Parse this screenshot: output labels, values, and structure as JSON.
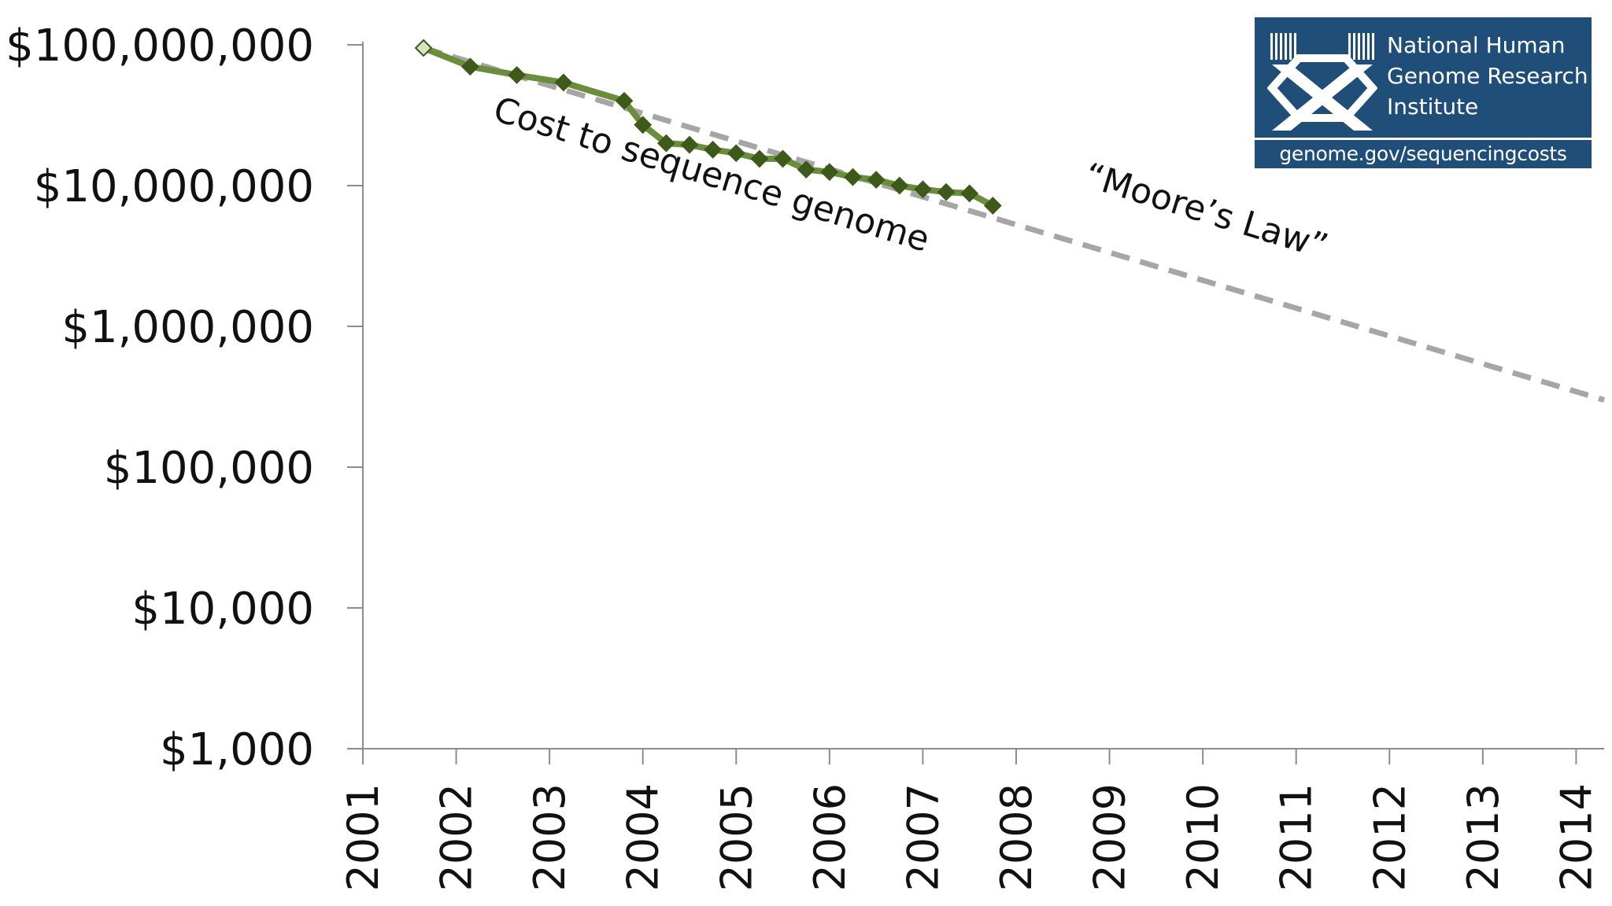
{
  "chart_data": {
    "type": "line",
    "y_scale": "log",
    "ylim": [
      1000,
      100000000
    ],
    "y_ticks": [
      1000,
      10000,
      100000,
      1000000,
      10000000,
      100000000
    ],
    "y_tick_labels": [
      "$1,000",
      "$10,000",
      "$100,000",
      "$1,000,000",
      "$10,000,000",
      "$100,000,000"
    ],
    "xlim": [
      2001,
      2014.3
    ],
    "x_ticks": [
      2001,
      2002,
      2003,
      2004,
      2005,
      2006,
      2007,
      2008,
      2009,
      2010,
      2011,
      2012,
      2013,
      2014
    ],
    "x_tick_labels": [
      "2001",
      "2002",
      "2003",
      "2004",
      "2005",
      "2006",
      "2007",
      "2008",
      "2009",
      "2010",
      "2011",
      "2012",
      "2013",
      "2014"
    ],
    "grid": false,
    "series": [
      {
        "name": "Cost to sequence genome",
        "color": "#6b8e3a",
        "marker_color": "#3d5a1a",
        "style": "solid",
        "x": [
          2001.65,
          2002.15,
          2002.65,
          2003.15,
          2003.8,
          2004.0,
          2004.25,
          2004.5,
          2004.75,
          2005.0,
          2005.25,
          2005.5,
          2005.75,
          2006.0,
          2006.25,
          2006.5,
          2006.75,
          2007.0,
          2007.25,
          2007.5,
          2007.75
        ],
        "values": [
          95000000,
          70000000,
          61000000,
          54000000,
          40000000,
          27000000,
          20000000,
          19500000,
          18000000,
          17000000,
          15500000,
          15500000,
          13000000,
          12500000,
          11500000,
          11000000,
          10000000,
          9400000,
          9000000,
          8800000,
          7200000
        ]
      },
      {
        "name": "Moore's Law",
        "color": "#a6a6a6",
        "style": "dashed",
        "x": [
          2001.65,
          2014.3
        ],
        "values": [
          95000000,
          300000
        ]
      }
    ],
    "annotations": [
      {
        "text": "Cost to sequence genome",
        "x": 2004.7,
        "y": 10000000,
        "rotation": 17
      },
      {
        "text": "“Moore’s Law”",
        "x": 2010.0,
        "y": 5500000,
        "rotation": 17
      }
    ]
  },
  "logo": {
    "line1": "National Human",
    "line2": "Genome Research",
    "line3": "Institute",
    "url": "genome.gov/sequencingcosts",
    "bg_color": "#1f4e79"
  }
}
